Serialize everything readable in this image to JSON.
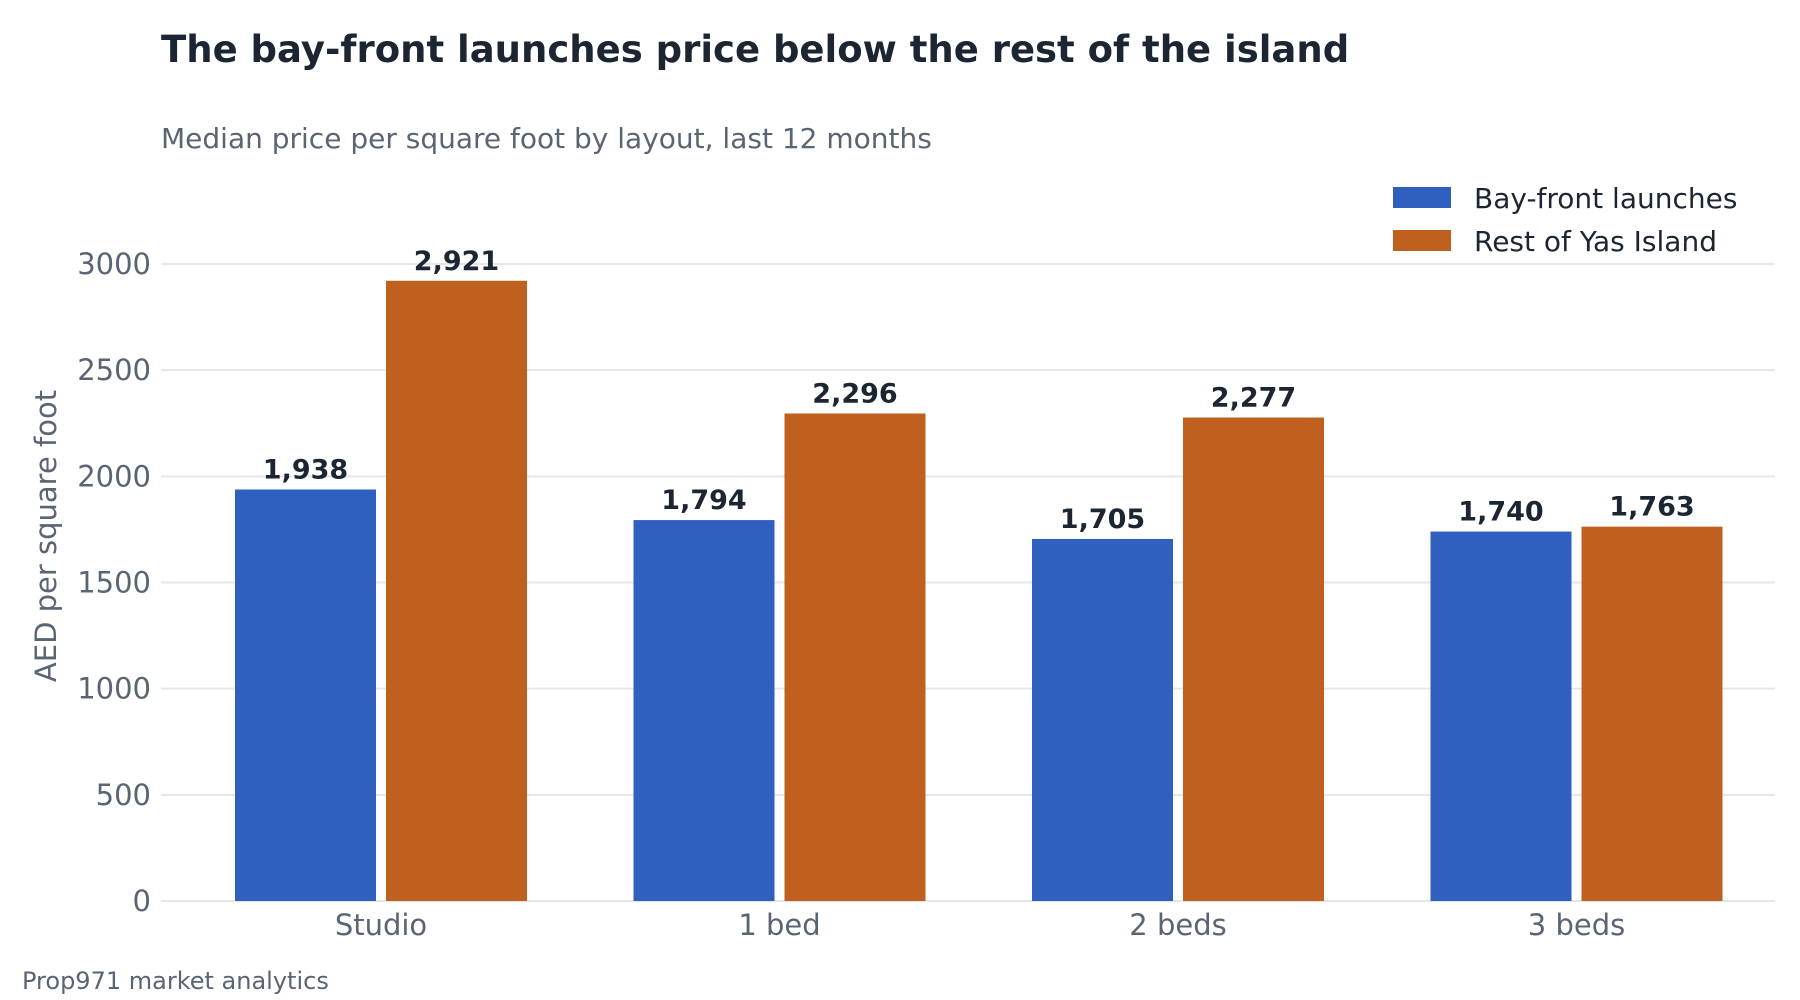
{
  "chart_data": {
    "type": "bar",
    "title": "The bay-front launches price below the rest of the island",
    "subtitle": "Median price per square foot by layout, last 12 months",
    "xlabel": "",
    "ylabel": "AED per square foot",
    "categories": [
      "Studio",
      "1 bed",
      "2 beds",
      "3 beds"
    ],
    "series": [
      {
        "name": "Bay-front launches",
        "color": "#2f5fbf",
        "values": [
          1938,
          1794,
          1705,
          1740
        ],
        "labels": [
          "1,938",
          "1,794",
          "1,705",
          "1,740"
        ]
      },
      {
        "name": "Rest of Yas Island",
        "color": "#c0601f",
        "values": [
          2921,
          2296,
          2277,
          1763
        ],
        "labels": [
          "2,921",
          "2,296",
          "2,277",
          "1,763"
        ]
      }
    ],
    "ylim": [
      0,
      3000
    ],
    "yticks": [
      0,
      500,
      1000,
      1500,
      2000,
      2500,
      3000
    ],
    "ytick_labels": [
      "0",
      "500",
      "1000",
      "1500",
      "2000",
      "2500",
      "3000"
    ],
    "grid": true,
    "legend_position": "top-right",
    "source": "Prop971 market analytics"
  }
}
